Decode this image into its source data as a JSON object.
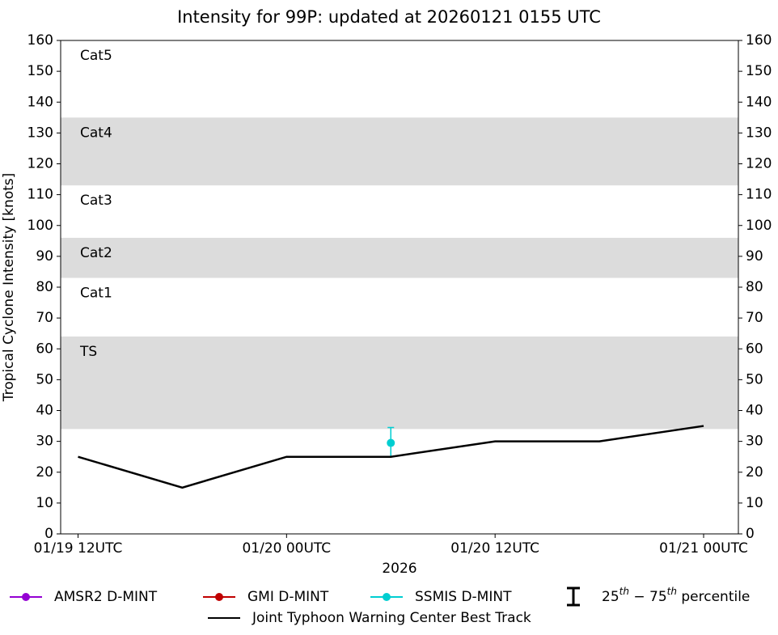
{
  "chart_data": {
    "type": "line",
    "title": "Intensity for 99P: updated at 20260121 0155 UTC",
    "y_label": "Tropical Cyclone Intensity [knots]",
    "x_label": "2026",
    "xlim": [
      "01/19 11UTC",
      "01/21 02UTC"
    ],
    "xticks": [
      "01/19 12UTC",
      "01/20 00UTC",
      "01/20 12UTC",
      "01/21 00UTC"
    ],
    "ylim": [
      0,
      160
    ],
    "yticks": [
      0,
      10,
      20,
      30,
      40,
      50,
      60,
      70,
      80,
      90,
      100,
      110,
      120,
      130,
      140,
      150,
      160
    ],
    "y2lim": [
      0,
      160
    ],
    "y2ticks": [
      0,
      10,
      20,
      30,
      40,
      50,
      60,
      70,
      80,
      90,
      100,
      110,
      120,
      130,
      140,
      150,
      160
    ],
    "intensity_categories": [
      {
        "name": "TS",
        "min": 34,
        "max": 64,
        "shaded": true
      },
      {
        "name": "Cat1",
        "min": 64,
        "max": 83,
        "shaded": false
      },
      {
        "name": "Cat2",
        "min": 83,
        "max": 96,
        "shaded": true
      },
      {
        "name": "Cat3",
        "min": 96,
        "max": 113,
        "shaded": false
      },
      {
        "name": "Cat4",
        "min": 113,
        "max": 135,
        "shaded": true
      },
      {
        "name": "Cat5",
        "min": 135,
        "max": null,
        "shaded": false
      }
    ],
    "band_color": "#dcdcdc",
    "series": [
      {
        "name": "AMSR2 D-MINT",
        "color": "#9400d3",
        "style": "markers",
        "x": [],
        "values": []
      },
      {
        "name": "GMI D-MINT",
        "color": "#c00000",
        "style": "markers",
        "x": [],
        "values": []
      },
      {
        "name": "SSMIS D-MINT",
        "color": "#00ced1",
        "style": "markers",
        "x": [
          "01/20 06UTC"
        ],
        "values": [
          29.5
        ],
        "p25": [
          25
        ],
        "p75": [
          34.5
        ]
      },
      {
        "name": "Joint Typhoon Warning Center Best Track",
        "color": "#000000",
        "style": "line",
        "x": [
          "01/19 12UTC",
          "01/19 18UTC",
          "01/20 00UTC",
          "01/20 06UTC",
          "01/20 12UTC",
          "01/20 18UTC",
          "01/21 00UTC"
        ],
        "values": [
          25,
          15,
          25,
          25,
          30,
          30,
          35
        ]
      }
    ],
    "percentile_legend": {
      "low": "25",
      "low_sup": "th",
      "sep": " − ",
      "high": "75",
      "high_sup": "th",
      "text": " percentile"
    }
  }
}
